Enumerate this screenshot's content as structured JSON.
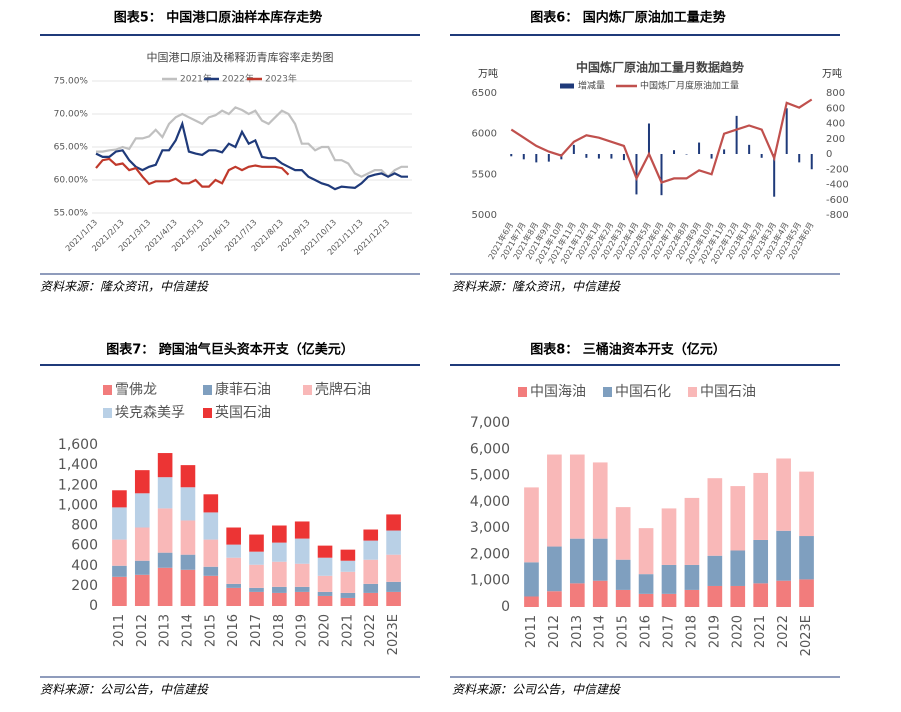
{
  "panels": [
    {
      "heading": "图表5： 中国港口原油样本库存走势",
      "source": "资料来源：隆众资讯，中信建投"
    },
    {
      "heading": "图表6： 国内炼厂原油加工量走势",
      "source": "资料来源：隆众资讯，中信建投"
    },
    {
      "heading": "图表7： 跨国油气巨头资本开支（亿美元）",
      "source": "资料来源：公司公告，中信建投"
    },
    {
      "heading": "图表8： 三桶油资本开支（亿元）",
      "source": "资料来源：公司公告，中信建投"
    }
  ],
  "chart_data": [
    {
      "type": "line",
      "title": "中国港口原油及稀释沥青库容率走势图",
      "categories": [
        "2021/1/13",
        null,
        null,
        null,
        "2021/2/13",
        null,
        null,
        null,
        "2021/3/13",
        null,
        null,
        null,
        "2021/4/13",
        null,
        null,
        null,
        "2021/5/13",
        null,
        null,
        null,
        "2021/6/13",
        null,
        null,
        null,
        "2021/7/13",
        null,
        null,
        null,
        "2021/8/13",
        null,
        null,
        null,
        "2021/9/13",
        null,
        null,
        null,
        "2021/10/13",
        null,
        null,
        null,
        "2021/11/13",
        null,
        null,
        null,
        "2021/12/13",
        null,
        null,
        null
      ],
      "series": [
        {
          "name": "2021年",
          "color": "#c0c0c0",
          "values": [
            64.3,
            64.3,
            64.5,
            64.6,
            65,
            64.7,
            66.3,
            66.3,
            66.6,
            67.6,
            66.5,
            68.5,
            69.5,
            70,
            69.5,
            69,
            68.5,
            69.5,
            69.8,
            70.5,
            70,
            71,
            70.6,
            70,
            70.5,
            69,
            68.5,
            69.5,
            70.5,
            70,
            68.5,
            65.5,
            65.5,
            64.5,
            65,
            65,
            63,
            63,
            62.5,
            61,
            60.5,
            61,
            61.5,
            61.5,
            60.5,
            61.5,
            62,
            62
          ]
        },
        {
          "name": "2022年",
          "color": "#1f3a7a",
          "values": [
            64,
            63.5,
            63.5,
            64.3,
            64.5,
            63,
            62,
            61.5,
            62,
            62.3,
            64.5,
            64.5,
            66,
            68.5,
            64.3,
            64,
            63.8,
            64.5,
            64.5,
            64.2,
            65.5,
            65,
            67.3,
            65.5,
            66,
            63.5,
            63.3,
            63.3,
            62.5,
            62,
            61.5,
            61.5,
            60.5,
            60,
            59.5,
            59.2,
            58.6,
            59,
            58.9,
            58.8,
            59.5,
            60.5,
            60.8,
            61,
            60.5,
            61,
            60.5,
            60.5
          ]
        },
        {
          "name": "2023年",
          "color": "#c0392b",
          "values": [
            61.8,
            63,
            63.2,
            62.3,
            62.5,
            61.5,
            61.8,
            60.5,
            59.4,
            59.8,
            59.8,
            59.8,
            60.2,
            59.5,
            59.5,
            60,
            59,
            59,
            60,
            59.5,
            61.5,
            62,
            61.5,
            62,
            62.2,
            62,
            62,
            62,
            61.8,
            60.8,
            null,
            null,
            null,
            null,
            null,
            null,
            null,
            null,
            null,
            null,
            null,
            null,
            null,
            null,
            null,
            null,
            null,
            null
          ]
        }
      ],
      "ylim": [
        55,
        75
      ],
      "yticks": [
        {
          "value": 55,
          "label": "55.00%"
        },
        {
          "value": 60,
          "label": "60.00%"
        },
        {
          "value": 65,
          "label": "65.00%"
        },
        {
          "value": 70,
          "label": "70.00%"
        },
        {
          "value": 75,
          "label": "75.00%"
        }
      ],
      "grid": true
    },
    {
      "type": "combo",
      "title": "中国炼厂原油加工量月数据趋势",
      "y_unit": "万吨",
      "y2_unit": "万吨",
      "categories": [
        "2021年6月",
        "2021年7月",
        "2021年8月",
        "2021年9月",
        "2021年10月",
        "2021年11月",
        "2021年12月",
        "2022年1月",
        "2022年2月",
        "2022年3月",
        "2022年4月",
        "2022年5月",
        "2022年6月",
        "2022年7月",
        "2022年8月",
        "2022年9月",
        "2022年10月",
        "2022年11月",
        "2022年12月",
        "2023年1月",
        "2023年2月",
        "2023年3月",
        "2023年4月",
        "2023年5月",
        "2023年6月"
      ],
      "series": [
        {
          "name": "增减量",
          "type": "bar",
          "axis": "y2",
          "color": "#1f3a7a",
          "values": [
            -30,
            -70,
            -110,
            -100,
            -70,
            120,
            -50,
            -60,
            -60,
            -80,
            -530,
            400,
            -540,
            50,
            0,
            150,
            -60,
            60,
            500,
            120,
            -50,
            -560,
            600,
            -110,
            -200
          ]
        },
        {
          "name": "中国炼厂月度原油加工量",
          "type": "line",
          "color": "#c0504d",
          "values": [
            6050,
            5950,
            5850,
            5780,
            5730,
            5900,
            5980,
            5950,
            5900,
            5850,
            5450,
            5750,
            5400,
            5450,
            5450,
            5550,
            5500,
            6000,
            6050,
            6100,
            6050,
            5700,
            6380,
            6320,
            6420
          ]
        }
      ],
      "ylim": [
        5000,
        6500
      ],
      "yticks": [
        5000,
        5500,
        6000,
        6500
      ],
      "y2lim": [
        -800,
        800
      ],
      "y2ticks": [
        -800,
        -600,
        -400,
        -200,
        0,
        200,
        400,
        600,
        800
      ],
      "grid": false
    },
    {
      "type": "stacked_bar",
      "categories": [
        "2011",
        "2012",
        "2013",
        "2014",
        "2015",
        "2016",
        "2017",
        "2018",
        "2019",
        "2020",
        "2021",
        "2022",
        "2023E"
      ],
      "series": [
        {
          "name": "雪佛龙",
          "color": "#f27c7c",
          "values": [
            290,
            310,
            380,
            360,
            300,
            180,
            140,
            130,
            140,
            100,
            80,
            130,
            140
          ]
        },
        {
          "name": "康菲石油",
          "color": "#7f9fbf",
          "values": [
            110,
            140,
            150,
            150,
            90,
            40,
            40,
            60,
            50,
            40,
            50,
            90,
            100
          ]
        },
        {
          "name": "壳牌石油",
          "color": "#f9b8b8",
          "values": [
            260,
            330,
            440,
            340,
            270,
            260,
            230,
            250,
            230,
            160,
            210,
            240,
            270
          ]
        },
        {
          "name": "埃克森美孚",
          "color": "#b9d0e6",
          "values": [
            320,
            340,
            310,
            330,
            270,
            130,
            130,
            190,
            250,
            180,
            110,
            190,
            240
          ]
        },
        {
          "name": "英国石油",
          "color": "#ec3434",
          "values": [
            170,
            230,
            240,
            220,
            180,
            170,
            170,
            170,
            170,
            120,
            110,
            110,
            160
          ]
        }
      ],
      "ylim": [
        0,
        1600
      ],
      "yticks": [
        0,
        200,
        400,
        600,
        800,
        {
          "value": 1000,
          "label": "1,000"
        },
        {
          "value": 1200,
          "label": "1,200"
        },
        {
          "value": 1400,
          "label": "1,400"
        },
        {
          "value": 1600,
          "label": "1,600"
        }
      ],
      "grid": false
    },
    {
      "type": "stacked_bar",
      "categories": [
        "2011",
        "2012",
        "2013",
        "2014",
        "2015",
        "2016",
        "2017",
        "2018",
        "2019",
        "2020",
        "2021",
        "2022",
        "2023E"
      ],
      "series": [
        {
          "name": "中国海油",
          "color": "#f27c7c",
          "values": [
            400,
            600,
            900,
            1000,
            650,
            500,
            500,
            650,
            800,
            800,
            900,
            1000,
            1050
          ]
        },
        {
          "name": "中国石化",
          "color": "#7f9fbf",
          "values": [
            1300,
            1700,
            1700,
            1600,
            1150,
            750,
            1100,
            950,
            1150,
            1350,
            1650,
            1900,
            1650
          ]
        },
        {
          "name": "中国石油",
          "color": "#f9b8b8",
          "values": [
            2850,
            3500,
            3200,
            2900,
            2000,
            1750,
            2150,
            2550,
            2950,
            2450,
            2550,
            2750,
            2450
          ]
        }
      ],
      "ylim": [
        0,
        7000
      ],
      "yticks": [
        0,
        {
          "value": 1000,
          "label": "1,000"
        },
        {
          "value": 2000,
          "label": "2,000"
        },
        {
          "value": 3000,
          "label": "3,000"
        },
        {
          "value": 4000,
          "label": "4,000"
        },
        {
          "value": 5000,
          "label": "5,000"
        },
        {
          "value": 6000,
          "label": "6,000"
        },
        {
          "value": 7000,
          "label": "7,000"
        }
      ],
      "grid": false
    }
  ]
}
